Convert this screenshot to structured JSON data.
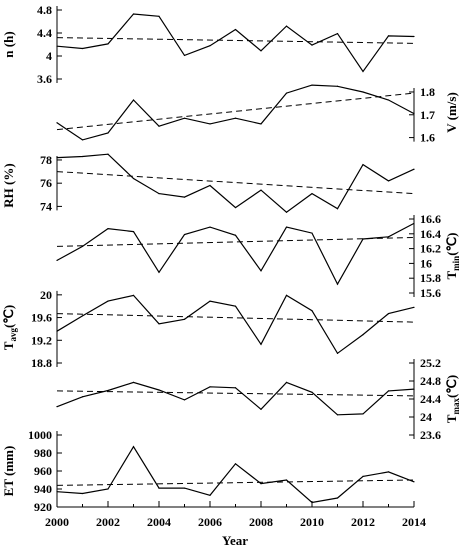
{
  "chart_data": {
    "type": "line",
    "xlabel": "Year",
    "x": [
      2000,
      2001,
      2002,
      2003,
      2004,
      2005,
      2006,
      2007,
      2008,
      2009,
      2010,
      2011,
      2012,
      2013,
      2014
    ],
    "x_ticks": [
      "2000",
      "2002",
      "2004",
      "2006",
      "2008",
      "2010",
      "2012",
      "2014"
    ],
    "xlim": [
      2000,
      2014
    ],
    "panels": [
      {
        "id": "n",
        "ylabel": "n (h)",
        "ylabel_main": "n (h)",
        "ylabel_sub": "",
        "ylabel_unit": "",
        "axis_side": "left",
        "ylim": [
          3.6,
          4.8
        ],
        "yticks": [
          3.6,
          4,
          4.4,
          4.8
        ],
        "ytick_labels": [
          "3.6",
          "4",
          "4.4",
          "4.8"
        ],
        "values": [
          4.17,
          4.13,
          4.21,
          4.73,
          4.69,
          4.01,
          4.18,
          4.46,
          4.09,
          4.52,
          4.19,
          4.39,
          3.73,
          4.35,
          4.34
        ],
        "trend": [
          4.32,
          4.22
        ]
      },
      {
        "id": "V",
        "ylabel": "V (m/s)",
        "ylabel_main": "V (m/s)",
        "ylabel_sub": "",
        "ylabel_unit": "",
        "axis_side": "right",
        "ylim": [
          1.55,
          1.87
        ],
        "yticks": [
          1.6,
          1.7,
          1.8
        ],
        "ytick_labels": [
          "1.6",
          "1.7",
          "1.8"
        ],
        "values": [
          1.665,
          1.59,
          1.62,
          1.765,
          1.65,
          1.685,
          1.66,
          1.685,
          1.66,
          1.795,
          1.83,
          1.825,
          1.8,
          1.765,
          1.705
        ],
        "trend": [
          1.635,
          1.795
        ]
      },
      {
        "id": "RH",
        "ylabel": "RH (%)",
        "ylabel_main": "RH (%)",
        "ylabel_sub": "",
        "ylabel_unit": "",
        "axis_side": "left",
        "ylim": [
          73,
          78.6
        ],
        "yticks": [
          74,
          76,
          78
        ],
        "ytick_labels": [
          "74",
          "76",
          "78"
        ],
        "values": [
          78.2,
          78.3,
          78.5,
          76.4,
          75.1,
          74.8,
          75.8,
          73.9,
          75.4,
          73.5,
          75.1,
          73.8,
          77.6,
          76.2,
          77.2
        ],
        "trend": [
          77.0,
          75.1
        ]
      },
      {
        "id": "Tmin",
        "ylabel": "Tmin(℃)",
        "ylabel_main": "T",
        "ylabel_sub": "min",
        "ylabel_unit": "(℃)",
        "axis_side": "right",
        "ylim": [
          15.6,
          16.6
        ],
        "yticks": [
          15.6,
          15.8,
          16,
          16.2,
          16.4,
          16.6
        ],
        "ytick_labels": [
          "15.6",
          "15.8",
          "16",
          "16.2",
          "16.4",
          "16.6"
        ],
        "values": [
          16.04,
          16.23,
          16.47,
          16.43,
          15.88,
          16.39,
          16.49,
          16.38,
          15.9,
          16.49,
          16.41,
          15.72,
          16.33,
          16.36,
          16.54
        ],
        "trend": [
          16.23,
          16.35
        ]
      },
      {
        "id": "Tavg",
        "ylabel": "Tavg(℃)",
        "ylabel_main": "T",
        "ylabel_sub": "avg",
        "ylabel_unit": "(℃)",
        "axis_side": "left",
        "ylim": [
          18.8,
          20.05
        ],
        "yticks": [
          18.8,
          19.2,
          19.6,
          20
        ],
        "ytick_labels": [
          "18.8",
          "19.2",
          "19.6",
          "20"
        ],
        "values": [
          19.36,
          19.63,
          19.89,
          19.99,
          19.49,
          19.57,
          19.89,
          19.8,
          19.13,
          19.99,
          19.72,
          18.97,
          19.3,
          19.67,
          19.78
        ],
        "trend": [
          19.67,
          19.52
        ]
      },
      {
        "id": "Tmax",
        "ylabel": "Tmax(℃)",
        "ylabel_main": "T",
        "ylabel_sub": "max",
        "ylabel_unit": "(℃)",
        "axis_side": "right",
        "ylim": [
          23.6,
          25.2
        ],
        "yticks": [
          23.6,
          24,
          24.4,
          24.8,
          25.2
        ],
        "ytick_labels": [
          "23.6",
          "24",
          "24.4",
          "24.8",
          "25.2"
        ],
        "values": [
          24.23,
          24.45,
          24.59,
          24.77,
          24.6,
          24.38,
          24.67,
          24.65,
          24.17,
          24.77,
          24.55,
          24.05,
          24.07,
          24.58,
          24.62
        ],
        "trend": [
          24.58,
          24.47
        ]
      },
      {
        "id": "ET",
        "ylabel": "ET (mm)",
        "ylabel_main": "ET (mm)",
        "ylabel_sub": "",
        "ylabel_unit": "",
        "axis_side": "left",
        "ylim": [
          920,
          1000
        ],
        "yticks": [
          920,
          940,
          960,
          980,
          1000
        ],
        "ytick_labels": [
          "920",
          "940",
          "960",
          "980",
          "1000"
        ],
        "values": [
          937,
          935,
          940,
          987,
          941,
          941,
          933,
          968,
          946,
          950,
          925,
          930,
          954,
          959,
          948
        ],
        "trend": [
          944,
          950
        ]
      }
    ]
  }
}
